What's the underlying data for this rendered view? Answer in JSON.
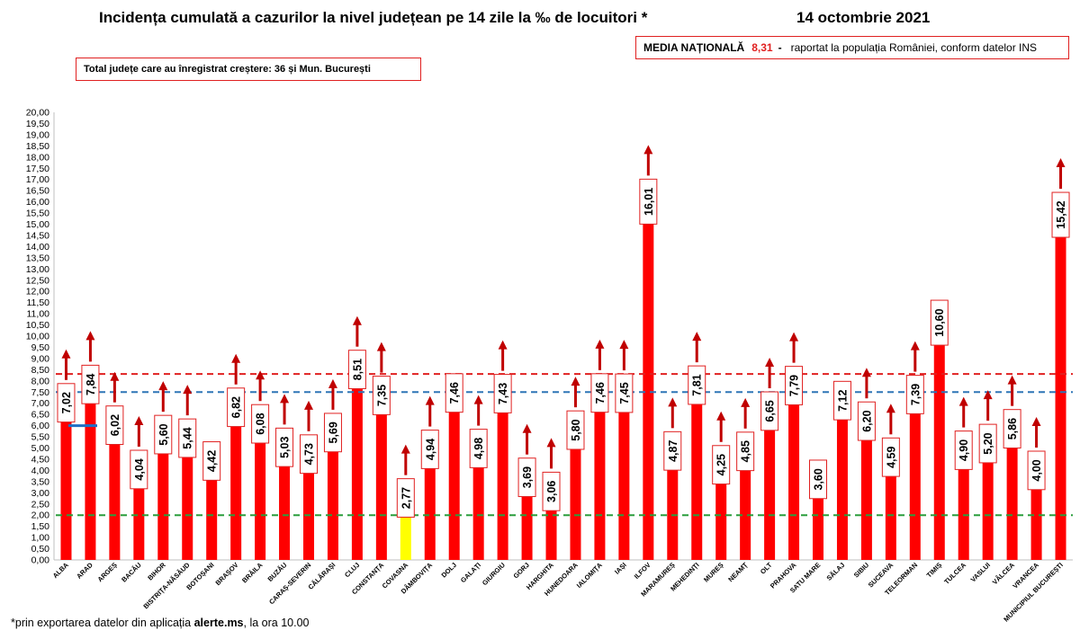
{
  "header": {
    "title": "Incidența cumulată a cazurilor la nivel județean pe 14 zile la ‰ de locuitori *",
    "date": "14 octombrie 2021"
  },
  "media": {
    "label": "MEDIA NAȚIONALĂ",
    "value": "8,31",
    "dash": "-",
    "note": "raportat la populația României, conform datelor INS"
  },
  "total": {
    "text": "Total județe care au înregistrat creștere:  36 și Mun. București"
  },
  "footnote": {
    "prefix": "*prin exportarea  datelor din aplicația ",
    "app": "alerte.ms",
    "suffix": ", la ora 10.00"
  },
  "colors": {
    "bar": "#ff0000",
    "highlight_bar": "#ffff00",
    "arrow": "#c00000",
    "line_red": "#e02020",
    "line_blue": "#2e75b6",
    "line_green": "#2a9d3c",
    "accent_blue": "#1f6fc6"
  },
  "chart_data": {
    "type": "bar",
    "ylim": [
      0,
      20
    ],
    "ytick_step": 0.5,
    "yticks_decimal_comma": true,
    "grid": false,
    "reference_lines": [
      {
        "value": 8.31,
        "color": "#e02020",
        "style": "dashed"
      },
      {
        "value": 7.5,
        "color": "#2e75b6",
        "style": "dashed"
      },
      {
        "value": 2.0,
        "color": "#2a9d3c",
        "style": "dashed"
      }
    ],
    "categories": [
      "ALBA",
      "ARAD",
      "ARGEȘ",
      "BACĂU",
      "BIHOR",
      "BISTRIȚA-NĂSĂUD",
      "BOTOȘANI",
      "BRAȘOV",
      "BRĂILA",
      "BUZĂU",
      "CARAȘ-SEVERIN",
      "CĂLĂRAȘI",
      "CLUJ",
      "CONSTANȚA",
      "COVASNA",
      "DÂMBOVIȚA",
      "DOLJ",
      "GALAȚI",
      "GIURGIU",
      "GORJ",
      "HARGHITA",
      "HUNEDOARA",
      "IALOMIȚA",
      "IAȘI",
      "ILFOV",
      "MARAMUREȘ",
      "MEHEDINȚI",
      "MUREȘ",
      "NEAMȚ",
      "OLT",
      "PRAHOVA",
      "SATU MARE",
      "SĂLAJ",
      "SIBIU",
      "SUCEAVA",
      "TELEORMAN",
      "TIMIȘ",
      "TULCEA",
      "VASLUI",
      "VÂLCEA",
      "VRANCEA",
      "MUNICIPIUL BUCUREȘTI"
    ],
    "values": [
      7.02,
      7.84,
      6.02,
      4.04,
      5.6,
      5.44,
      4.42,
      6.82,
      6.08,
      5.03,
      4.73,
      5.69,
      8.51,
      7.35,
      2.77,
      4.94,
      7.46,
      4.98,
      7.43,
      3.69,
      3.06,
      5.8,
      7.46,
      7.45,
      16.01,
      4.87,
      7.81,
      4.25,
      4.85,
      6.65,
      7.79,
      3.6,
      7.12,
      6.2,
      4.59,
      7.39,
      10.6,
      4.9,
      5.2,
      5.86,
      4.0,
      15.42
    ],
    "value_labels": [
      "7,02",
      "7,84",
      "6,02",
      "4,04",
      "5,60",
      "5,44",
      "4,42",
      "6,82",
      "6,08",
      "5,03",
      "4,73",
      "5,69",
      "8,51",
      "7,35",
      "2,77",
      "4,94",
      "7,46",
      "4,98",
      "7,43",
      "3,69",
      "3,06",
      "5,80",
      "7,46",
      "7,45",
      "16,01",
      "4,87",
      "7,81",
      "4,25",
      "4,85",
      "6,65",
      "7,79",
      "3,60",
      "7,12",
      "6,20",
      "4,59",
      "7,39",
      "10,60",
      "4,90",
      "5,20",
      "5,86",
      "4,00",
      "15,42"
    ],
    "increase": [
      true,
      true,
      true,
      true,
      true,
      true,
      false,
      true,
      true,
      true,
      true,
      true,
      true,
      true,
      true,
      true,
      false,
      true,
      true,
      true,
      true,
      true,
      true,
      true,
      true,
      true,
      true,
      true,
      true,
      true,
      true,
      false,
      false,
      true,
      true,
      true,
      false,
      true,
      true,
      true,
      true,
      true
    ],
    "highlight": "COVASNA"
  }
}
